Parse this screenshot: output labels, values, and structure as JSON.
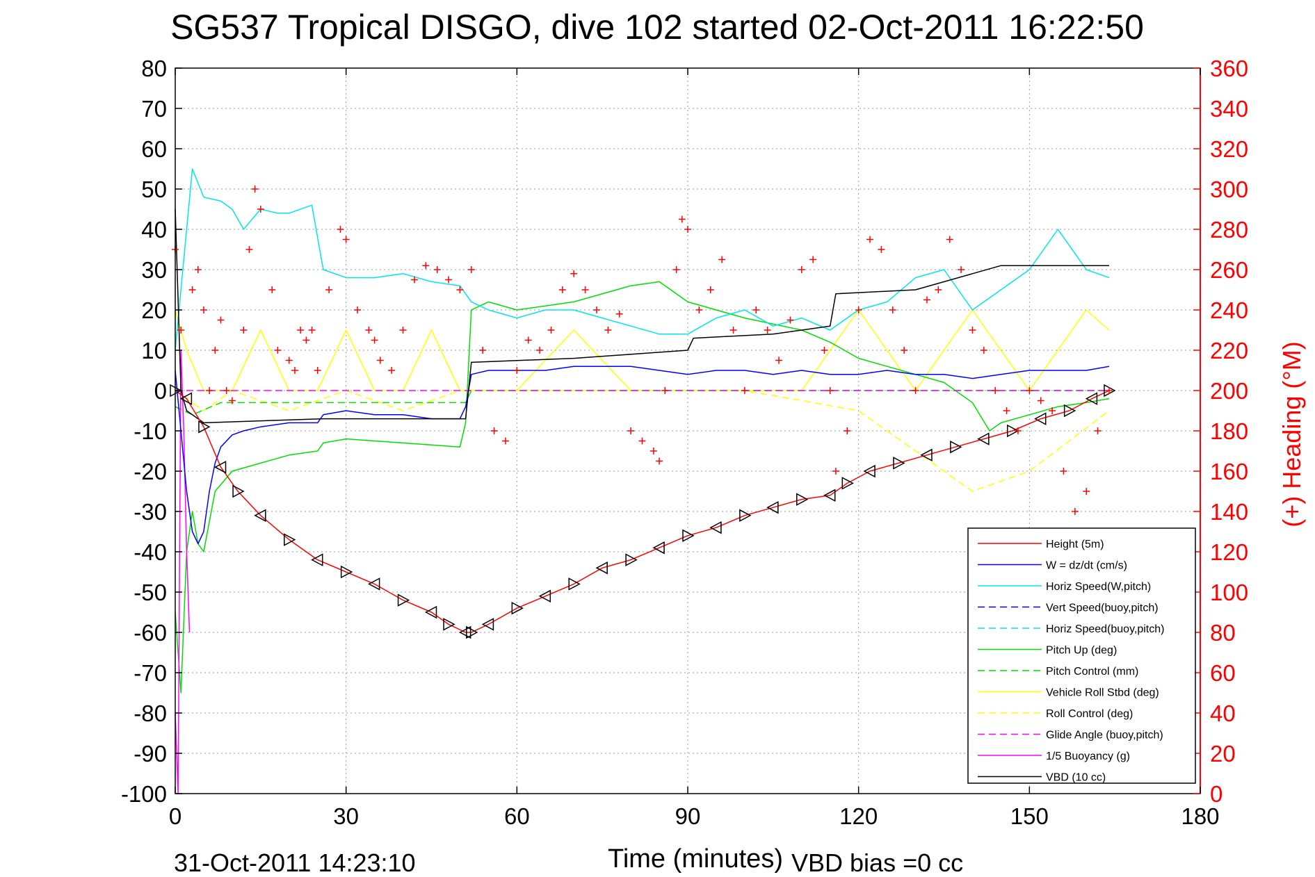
{
  "chart_data": {
    "type": "line",
    "title": "SG537 Tropical DISGO, dive 102 started 02-Oct-2011 16:22:50",
    "xlabel": "Time (minutes)",
    "ylabel_left": "",
    "ylabel_right": "(+) Heading (°M)",
    "xlim": [
      0,
      180
    ],
    "ylim_left": [
      -100,
      80
    ],
    "ylim_right": [
      0,
      360
    ],
    "x_ticks": [
      "0",
      "30",
      "60",
      "90",
      "120",
      "150",
      "180"
    ],
    "y_ticks_left": [
      "80",
      "70",
      "60",
      "50",
      "40",
      "30",
      "20",
      "10",
      "0",
      "-10",
      "-20",
      "-30",
      "-40",
      "-50",
      "-60",
      "-70",
      "-80",
      "-90",
      "-100"
    ],
    "y_ticks_right": [
      "360",
      "340",
      "320",
      "300",
      "280",
      "260",
      "240",
      "220",
      "200",
      "180",
      "160",
      "140",
      "120",
      "100",
      "80",
      "60",
      "40",
      "20",
      "0"
    ],
    "grid": true,
    "legend_position": "lower-right",
    "footer_date": "31-Oct-2011 14:23:10",
    "footer_vbd": "VBD bias =0 cc",
    "series": [
      {
        "name": "Height (5m)",
        "color": "#ff0000",
        "style": "solid",
        "marker": "triangle",
        "x": [
          0,
          2,
          5,
          8,
          11,
          15,
          20,
          25,
          30,
          35,
          40,
          45,
          48,
          51,
          52,
          55,
          60,
          65,
          70,
          75,
          80,
          85,
          90,
          95,
          100,
          105,
          110,
          115,
          118,
          122,
          127,
          132,
          137,
          142,
          147,
          152,
          157,
          161,
          164
        ],
        "y": [
          0,
          -2,
          -9,
          -19,
          -25,
          -31,
          -37,
          -42,
          -45,
          -48,
          -52,
          -55,
          -58,
          -60,
          -60,
          -58,
          -54,
          -51,
          -48,
          -44,
          -42,
          -39,
          -36,
          -34,
          -31,
          -29,
          -27,
          -26,
          -23,
          -20,
          -18,
          -16,
          -14,
          -12,
          -10,
          -7,
          -5,
          -2,
          0
        ]
      },
      {
        "name": "W = dz/dt (cm/s)",
        "color": "#0000ff",
        "style": "solid",
        "marker": "none",
        "x": [
          0,
          1,
          2,
          3,
          4,
          5,
          6,
          7,
          8,
          10,
          12,
          15,
          20,
          25,
          26,
          30,
          35,
          40,
          45,
          50,
          51,
          52,
          55,
          60,
          65,
          70,
          75,
          80,
          85,
          90,
          95,
          100,
          105,
          110,
          115,
          120,
          125,
          130,
          135,
          140,
          145,
          150,
          155,
          160,
          164
        ],
        "y": [
          5,
          -10,
          -25,
          -35,
          -38,
          -35,
          -25,
          -18,
          -14,
          -11,
          -10,
          -9,
          -8,
          -8,
          -6,
          -5,
          -6,
          -6,
          -7,
          -7,
          -4,
          4,
          5,
          5,
          5,
          6,
          6,
          6,
          5,
          4,
          5,
          5,
          4,
          5,
          4,
          4,
          5,
          4,
          4,
          3,
          4,
          5,
          5,
          5,
          6
        ]
      },
      {
        "name": "Horiz Speed(W,pitch)",
        "color": "#00e6e6",
        "style": "solid",
        "marker": "none",
        "x": [
          0,
          2,
          3,
          5,
          8,
          10,
          12,
          15,
          18,
          20,
          24,
          26,
          30,
          35,
          40,
          45,
          50,
          52,
          55,
          60,
          65,
          70,
          75,
          80,
          85,
          90,
          95,
          100,
          105,
          110,
          115,
          120,
          125,
          130,
          135,
          140,
          145,
          150,
          155,
          160,
          164
        ],
        "y": [
          10,
          40,
          55,
          48,
          47,
          45,
          40,
          45,
          44,
          44,
          46,
          30,
          28,
          28,
          29,
          27,
          26,
          22,
          20,
          18,
          20,
          20,
          18,
          16,
          14,
          14,
          18,
          20,
          16,
          18,
          15,
          20,
          22,
          28,
          30,
          20,
          25,
          30,
          40,
          30,
          28
        ]
      },
      {
        "name": "Vert Speed(buoy,pitch)",
        "color": "#0000ff",
        "style": "dashed",
        "marker": "none",
        "x": [],
        "y": []
      },
      {
        "name": "Horiz Speed(buoy,pitch)",
        "color": "#00e6e6",
        "style": "dashed",
        "marker": "none",
        "x": [],
        "y": []
      },
      {
        "name": "Pitch Up (deg)",
        "color": "#00dd00",
        "style": "solid",
        "marker": "none",
        "x": [
          0,
          1,
          2,
          3,
          4,
          5,
          7,
          10,
          15,
          20,
          25,
          26,
          30,
          40,
          50,
          51,
          52,
          55,
          60,
          70,
          80,
          85,
          90,
          100,
          110,
          115,
          120,
          125,
          130,
          135,
          140,
          143,
          145,
          150,
          155,
          160,
          164
        ],
        "y": [
          -55,
          -75,
          -40,
          -30,
          -38,
          -40,
          -25,
          -20,
          -18,
          -16,
          -15,
          -13,
          -12,
          -13,
          -14,
          -8,
          20,
          22,
          20,
          22,
          26,
          27,
          22,
          18,
          15,
          12,
          8,
          6,
          4,
          2,
          -3,
          -10,
          -8,
          -6,
          -4,
          -3,
          -2
        ]
      },
      {
        "name": "Pitch Control (mm)",
        "color": "#00dd00",
        "style": "dashed",
        "marker": "none",
        "x": [
          0,
          3,
          8,
          10,
          20,
          30,
          40,
          50,
          51,
          52,
          60,
          80,
          90,
          100,
          120,
          140,
          150,
          164
        ],
        "y": [
          -4,
          -6,
          -3,
          -3,
          -3,
          -3,
          -3,
          -3,
          -3,
          0,
          0,
          0,
          0,
          0,
          0,
          0,
          0,
          0
        ]
      },
      {
        "name": "Vehicle Roll Stbd (deg)",
        "color": "#ffff00",
        "style": "solid",
        "marker": "none",
        "x": [
          0,
          2,
          5,
          10,
          15,
          20,
          25,
          30,
          35,
          40,
          45,
          50,
          55,
          60,
          70,
          80,
          90,
          100,
          110,
          120,
          130,
          140,
          150,
          160,
          164
        ],
        "y": [
          20,
          10,
          0,
          0,
          15,
          0,
          0,
          15,
          0,
          0,
          15,
          0,
          0,
          0,
          15,
          0,
          0,
          0,
          0,
          20,
          0,
          20,
          0,
          20,
          15
        ]
      },
      {
        "name": "Roll Control (deg)",
        "color": "#ffff00",
        "style": "dashed",
        "marker": "none",
        "x": [
          0,
          5,
          10,
          20,
          30,
          40,
          50,
          60,
          80,
          100,
          120,
          140,
          150,
          164
        ],
        "y": [
          0,
          -5,
          0,
          -5,
          0,
          -5,
          0,
          0,
          0,
          0,
          -5,
          -25,
          -20,
          -5
        ]
      },
      {
        "name": "Glide Angle (buoy,pitch)",
        "color": "#ff00ff",
        "style": "dashed",
        "marker": "none",
        "x": [
          0,
          164
        ],
        "y": [
          0,
          0
        ]
      },
      {
        "name": "1/5 Buoyancy (g)",
        "color": "#ff00ff",
        "style": "solid",
        "marker": "none",
        "x": [
          0,
          0.5,
          1,
          1.5,
          2,
          2.5
        ],
        "y": [
          -80,
          -100,
          10,
          -10,
          -40,
          -60
        ]
      },
      {
        "name": "VBD (10 cc)",
        "color": "#000000",
        "style": "solid",
        "marker": "none",
        "x": [
          0,
          1,
          2,
          5,
          26,
          27,
          51,
          52,
          70,
          90,
          91,
          105,
          115,
          116,
          130,
          140,
          145,
          164
        ],
        "y": [
          45,
          0,
          -5,
          -8,
          -7,
          -7,
          -7,
          7,
          8,
          10,
          13,
          14,
          16,
          24,
          25,
          29,
          31,
          31
        ]
      },
      {
        "name": "Heading",
        "color": "#ff0000",
        "style": "markers",
        "marker": "plus",
        "axis": "right",
        "x": [
          0,
          1,
          3,
          4,
          5,
          6,
          7,
          8,
          9,
          10,
          12,
          13,
          14,
          15,
          17,
          18,
          20,
          21,
          22,
          23,
          24,
          25,
          27,
          29,
          30,
          32,
          34,
          35,
          36,
          38,
          40,
          42,
          44,
          46,
          48,
          50,
          52,
          54,
          56,
          58,
          60,
          62,
          64,
          66,
          68,
          70,
          72,
          74,
          76,
          78,
          80,
          82,
          84,
          85,
          86,
          88,
          89,
          90,
          92,
          94,
          96,
          98,
          100,
          102,
          104,
          106,
          108,
          110,
          112,
          114,
          115,
          116,
          118,
          120,
          122,
          124,
          126,
          128,
          130,
          132,
          134,
          136,
          138,
          140,
          142,
          144,
          146,
          148,
          150,
          152,
          154,
          156,
          158,
          160,
          162,
          164
        ],
        "y": [
          270,
          230,
          250,
          260,
          240,
          200,
          220,
          235,
          200,
          195,
          230,
          270,
          300,
          290,
          250,
          220,
          215,
          210,
          230,
          225,
          230,
          210,
          250,
          280,
          275,
          240,
          230,
          225,
          215,
          210,
          230,
          255,
          262,
          260,
          255,
          250,
          260,
          220,
          180,
          175,
          210,
          225,
          220,
          230,
          250,
          258,
          250,
          240,
          230,
          238,
          180,
          175,
          170,
          165,
          200,
          260,
          285,
          280,
          240,
          250,
          265,
          230,
          200,
          240,
          230,
          215,
          235,
          260,
          265,
          220,
          200,
          160,
          180,
          240,
          275,
          270,
          240,
          220,
          200,
          245,
          250,
          275,
          260,
          230,
          220,
          200,
          190,
          180,
          200,
          195,
          190,
          160,
          140,
          150,
          180,
          200
        ]
      }
    ]
  }
}
